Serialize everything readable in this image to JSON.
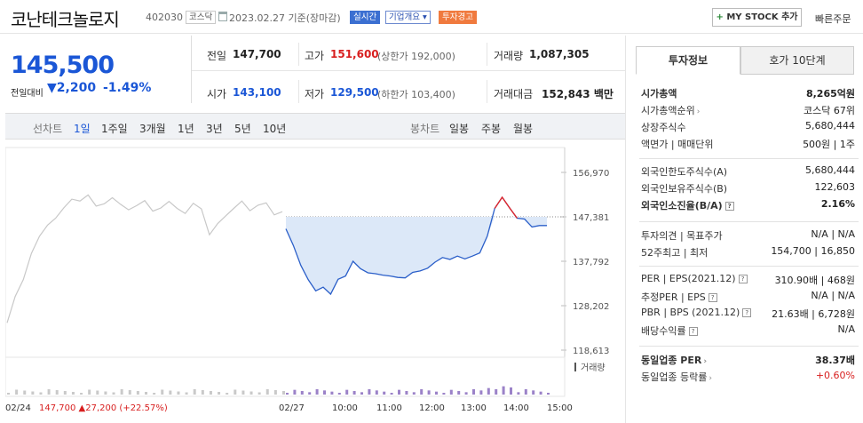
{
  "header": {
    "name": "코난테크놀로지",
    "code": "402030",
    "market_badge": "코스닥",
    "date": "2023.02.27 기준(장마감)",
    "realtime_badge": "실시간",
    "company_overview_badge": "기업개요",
    "warning_badge": "투자경고",
    "mystock_label": "MY STOCK 추가",
    "quick_order_label": "빠른주문"
  },
  "price": {
    "current": "145,500",
    "compare_label": "전일대비",
    "change": "2,200",
    "change_pct": "-1.49%"
  },
  "quote": {
    "prev_close_label": "전일",
    "prev_close": "147,700",
    "high_label": "고가",
    "high": "151,600",
    "upper_limit": "(상한가 192,000)",
    "volume_label": "거래량",
    "volume": "1,087,305",
    "open_label": "시가",
    "open": "143,100",
    "low_label": "저가",
    "low": "129,500",
    "lower_limit": "(하한가 103,400)",
    "amount_label": "거래대금",
    "amount": "152,843 백만"
  },
  "chart_tabs": {
    "line_label": "선차트",
    "periods": [
      "1일",
      "1주일",
      "3개월",
      "1년",
      "3년",
      "5년",
      "10년"
    ],
    "candle_label": "봉차트",
    "candles": [
      "일봉",
      "주봉",
      "월봉"
    ]
  },
  "chart_data": {
    "type": "line",
    "y_ticks": [
      "156,970",
      "147,381",
      "137,792",
      "128,202",
      "118,613"
    ],
    "ylim": [
      118613,
      156970
    ],
    "x_ticks": [
      "02/24",
      "02/27",
      "10:00",
      "11:00",
      "12:00",
      "13:00",
      "14:00",
      "15:00"
    ],
    "reference_line": 147381,
    "volume_label": "거래량",
    "series": [
      {
        "name": "02/24",
        "values": [
          124500,
          130200,
          133800,
          139500,
          143200,
          145600,
          147100,
          149300,
          151200,
          150800,
          152100,
          149700,
          150200,
          151500,
          150100,
          148900,
          149800,
          150900,
          148600,
          149300,
          150700,
          149200,
          148100,
          150300,
          149100,
          143500,
          145900,
          147600,
          149200,
          150800,
          148700,
          149900,
          150400,
          147800,
          148500
        ]
      },
      {
        "name": "02/27",
        "values": [
          144800,
          141200,
          136900,
          133800,
          131400,
          132200,
          130700,
          133900,
          134600,
          137800,
          136200,
          135300,
          135100,
          134800,
          134600,
          134300,
          134200,
          135400,
          135700,
          136300,
          137600,
          138600,
          138200,
          138900,
          138300,
          138900,
          139600,
          143200,
          149200,
          151600,
          149300,
          147100,
          146900,
          145200,
          145500,
          145500
        ]
      }
    ]
  },
  "footer": {
    "date": "02/24",
    "price": "147,700",
    "change": "27,200",
    "pct": "(+22.57%)"
  },
  "right_panel": {
    "tab_invest": "투자정보",
    "tab_hoga": "호가 10단계",
    "g1": [
      {
        "k": "시가총액",
        "v": "8,265억원",
        "bold": true
      },
      {
        "k": "시가총액순위",
        "v": "코스닥 67위"
      },
      {
        "k": "상장주식수",
        "v": "5,680,444"
      },
      {
        "k": "액면가 | 매매단위",
        "v": "500원 | 1주"
      }
    ],
    "g2": [
      {
        "k": "외국인한도주식수(A)",
        "v": "5,680,444"
      },
      {
        "k": "외국인보유주식수(B)",
        "v": "122,603"
      },
      {
        "k": "외국인소진율(B/A)",
        "v": "2.16%",
        "bold": true
      }
    ],
    "g3": [
      {
        "k": "투자의견 | 목표주가",
        "v": "N/A | N/A"
      },
      {
        "k": "52주최고 | 최저",
        "v": "154,700 | 16,850"
      }
    ],
    "g4": [
      {
        "k": "PER | EPS(2021.12)",
        "v": "310.90배 | 468원"
      },
      {
        "k": "추정PER | EPS",
        "v": "N/A | N/A"
      },
      {
        "k": "PBR | BPS (2021.12)",
        "v": "21.63배 | 6,728원"
      },
      {
        "k": "배당수익률",
        "v": "N/A"
      }
    ],
    "g5": [
      {
        "k": "동일업종 PER",
        "v": "38.37배",
        "bold": true
      },
      {
        "k": "동일업종 등락률",
        "v": "+0.60%",
        "red": true
      }
    ]
  }
}
